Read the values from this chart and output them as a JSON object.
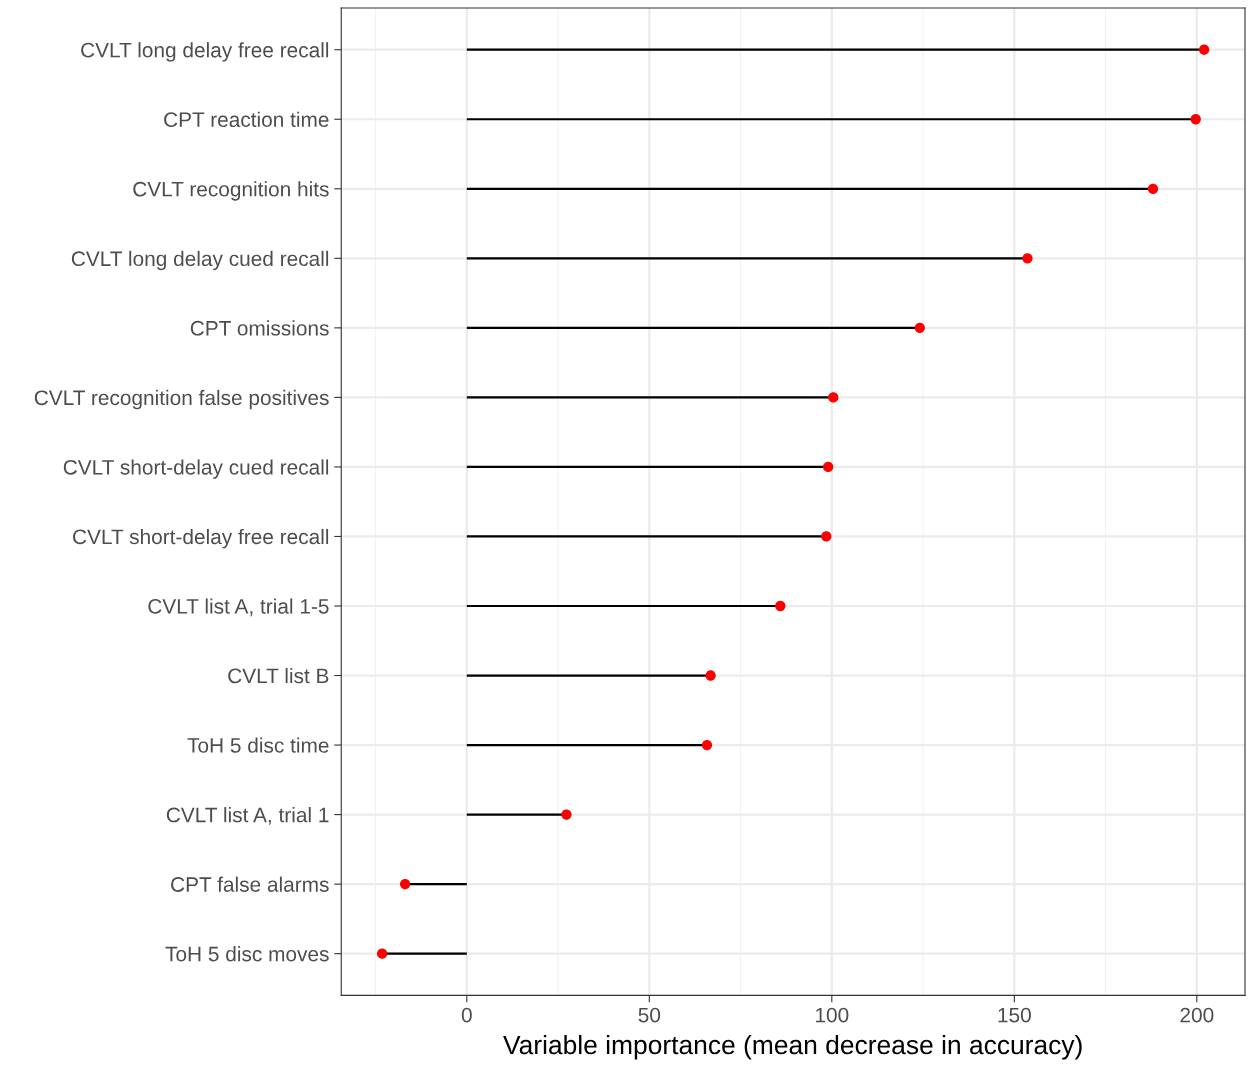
{
  "chart_data": {
    "type": "lollipop",
    "orientation": "horizontal",
    "xlabel": "Variable importance (mean decrease in accuracy)",
    "categories": [
      "CVLT long delay free recall",
      "CPT reaction time",
      "CVLT recognition hits",
      "CVLT long delay cued recall",
      "CPT omissions",
      "CVLT recognition false positives",
      "CVLT short-delay cued recall",
      "CVLT short-delay free recall",
      "CVLT list A, trial 1-5",
      "CVLT list B",
      "ToH 5 disc time",
      "CVLT list A, trial 1",
      "CPT false alarms",
      "ToH 5 disc moves"
    ],
    "values": [
      202,
      199.7,
      188,
      153.6,
      124.1,
      100.4,
      99,
      98.5,
      85.9,
      66.8,
      65.8,
      27.3,
      -16.9,
      -23.2
    ],
    "color": "#ff0000",
    "xlim": [
      -34.4,
      213.2
    ],
    "xticks": [
      0,
      50,
      100,
      150,
      200
    ],
    "grid": true,
    "marker": "circle"
  }
}
